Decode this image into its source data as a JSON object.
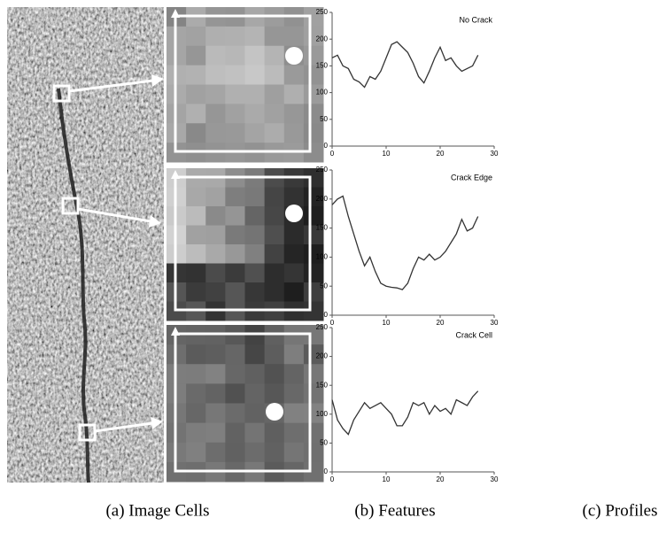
{
  "chart_data": [
    {
      "type": "line",
      "title": "No Crack",
      "x": [
        0,
        1,
        2,
        3,
        4,
        5,
        6,
        7,
        8,
        9,
        10,
        11,
        12,
        13,
        14,
        15,
        16,
        17,
        18,
        19,
        20,
        21,
        22,
        23,
        24,
        25,
        26,
        27
      ],
      "values": [
        165,
        170,
        150,
        145,
        125,
        120,
        110,
        130,
        125,
        140,
        165,
        190,
        195,
        185,
        175,
        155,
        130,
        118,
        140,
        165,
        185,
        160,
        165,
        150,
        140,
        145,
        150,
        170
      ],
      "color": "#333333",
      "xlim": [
        0,
        30
      ],
      "xticks": [
        0,
        10,
        20,
        30
      ],
      "ylim": [
        0,
        250
      ],
      "yticks": [
        0,
        50,
        100,
        150,
        200,
        250
      ]
    },
    {
      "type": "line",
      "title": "Crack Edge",
      "x": [
        0,
        1,
        2,
        3,
        4,
        5,
        6,
        7,
        8,
        9,
        10,
        11,
        12,
        13,
        14,
        15,
        16,
        17,
        18,
        19,
        20,
        21,
        22,
        23,
        24,
        25,
        26,
        27
      ],
      "values": [
        190,
        200,
        205,
        170,
        140,
        110,
        85,
        100,
        75,
        55,
        50,
        48,
        47,
        44,
        55,
        80,
        100,
        95,
        105,
        95,
        100,
        110,
        125,
        140,
        165,
        145,
        150,
        170
      ],
      "color": "#333333",
      "xlim": [
        0,
        30
      ],
      "xticks": [
        0,
        10,
        20,
        30
      ],
      "ylim": [
        0,
        250
      ],
      "yticks": [
        0,
        50,
        100,
        150,
        200,
        250
      ]
    },
    {
      "type": "line",
      "title": "Crack Cell",
      "x": [
        0,
        1,
        2,
        3,
        4,
        5,
        6,
        7,
        8,
        9,
        10,
        11,
        12,
        13,
        14,
        15,
        16,
        17,
        18,
        19,
        20,
        21,
        22,
        23,
        24,
        25,
        26,
        27
      ],
      "values": [
        125,
        90,
        75,
        65,
        90,
        105,
        120,
        110,
        115,
        120,
        110,
        100,
        80,
        80,
        95,
        120,
        115,
        120,
        100,
        115,
        105,
        110,
        100,
        125,
        120,
        115,
        130,
        140
      ],
      "color": "#333333",
      "xlim": [
        0,
        30
      ],
      "xticks": [
        0,
        10,
        20,
        30
      ],
      "ylim": [
        0,
        250
      ],
      "yticks": [
        0,
        50,
        100,
        150,
        200,
        250
      ]
    }
  ],
  "captions": [
    "(a) Image Cells",
    "(b) Features",
    "(c) Profiles"
  ]
}
